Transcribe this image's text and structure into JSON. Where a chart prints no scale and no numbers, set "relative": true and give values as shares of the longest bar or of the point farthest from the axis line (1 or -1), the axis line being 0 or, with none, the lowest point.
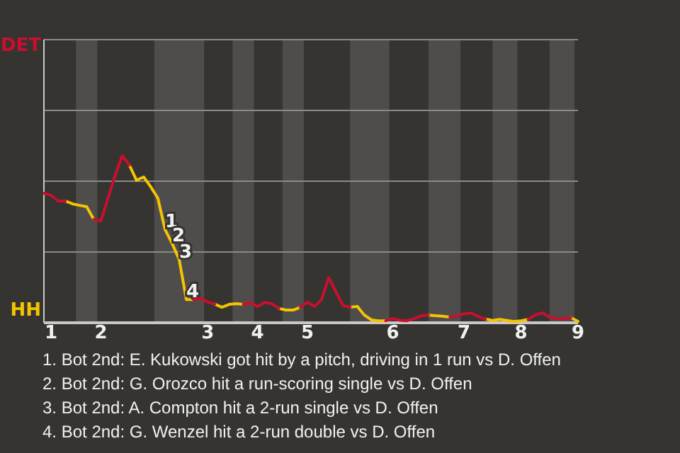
{
  "chart_data": {
    "type": "line",
    "relative": true,
    "categories": [
      null,
      "1",
      null,
      null,
      null,
      null,
      null,
      null,
      "2",
      null,
      null,
      null,
      null,
      null,
      null,
      null,
      null,
      null,
      null,
      null,
      null,
      null,
      null,
      "3",
      null,
      null,
      null,
      null,
      null,
      null,
      "4",
      null,
      null,
      null,
      null,
      null,
      null,
      "5",
      null,
      null,
      null,
      null,
      null,
      null,
      null,
      null,
      null,
      null,
      null,
      "6",
      null,
      null,
      null,
      null,
      null,
      null,
      null,
      null,
      null,
      "7",
      null,
      null,
      null,
      null,
      null,
      null,
      null,
      "8",
      null,
      null,
      null,
      null,
      null,
      null,
      null,
      "9"
    ],
    "series": [
      {
        "color": "#c8102e",
        "values": [
          0.775,
          0.763,
          0.729,
          0.729,
          null,
          null,
          null,
          0.619,
          0.61,
          0.746,
          0.881,
          1,
          0.944,
          null,
          null,
          null,
          null,
          null,
          null,
          null,
          null,
          0.139,
          0.146,
          0.124,
          0.112,
          null,
          null,
          null,
          0.11,
          0.12,
          0.097,
          0.122,
          0.114,
          0.086,
          null,
          null,
          0.093,
          0.124,
          0.097,
          0.139,
          0.271,
          0.186,
          0.103,
          0.093,
          null,
          null,
          null,
          null,
          0.012,
          0.025,
          0.015,
          0.012,
          0.024,
          0.042,
          0.046,
          null,
          null,
          0.034,
          0.041,
          0.054,
          0.058,
          0.037,
          0.022,
          null,
          null,
          null,
          null,
          null,
          0.02,
          0.047,
          0.059,
          0.034,
          0.025,
          0.024,
          0.031,
          null
        ]
      },
      {
        "color": "#f5c400",
        "values": [
          null,
          null,
          null,
          0.729,
          0.712,
          0.703,
          0.695,
          0.619,
          null,
          null,
          null,
          null,
          0.944,
          0.853,
          0.873,
          0.814,
          0.746,
          0.559,
          0.475,
          0.378,
          0.139,
          0.139,
          null,
          null,
          0.112,
          0.093,
          0.11,
          0.114,
          0.11,
          null,
          null,
          null,
          null,
          0.086,
          0.076,
          0.076,
          0.093,
          null,
          null,
          null,
          null,
          null,
          null,
          0.093,
          0.098,
          0.046,
          0.017,
          0.012,
          0.012,
          null,
          null,
          null,
          null,
          null,
          0.046,
          0.042,
          0.039,
          0.034,
          null,
          null,
          null,
          null,
          0.022,
          0.014,
          0.02,
          0.014,
          0.007,
          0.012,
          0.02,
          null,
          null,
          null,
          null,
          null,
          0.031,
          0.008
        ]
      }
    ],
    "ref_lines": [
      {
        "axis": "y",
        "value": 0.424,
        "color": "#8a8a8a"
      },
      {
        "axis": "y",
        "value": 0.847,
        "color": "#8a8a8a"
      },
      {
        "axis": "y",
        "value": 1.271,
        "color": "#8a8a8a"
      },
      {
        "axis": "y",
        "value": 1.695,
        "color": "#8a8a8a"
      }
    ],
    "legend": false,
    "marker": "none",
    "line_style": "solid",
    "annotations": [
      "DET",
      "HH",
      {
        "text": "1",
        "y": 0.559
      },
      {
        "text": "2",
        "y": 0.475
      },
      {
        "text": "3",
        "y": 0.378
      },
      {
        "text": "4",
        "y": 0.139
      },
      "1. Bot 2nd: E. Kukowski got hit by a pitch, driving in 1 run vs D. Offen",
      "2. Bot 2nd: G. Orozco hit a run-scoring single vs D. Offen",
      "3. Bot 2nd: A. Compton hit a 2-run single vs D. Offen",
      "4. Bot 2nd: G. Wenzel hit a 2-run double vs D. Offen"
    ]
  }
}
